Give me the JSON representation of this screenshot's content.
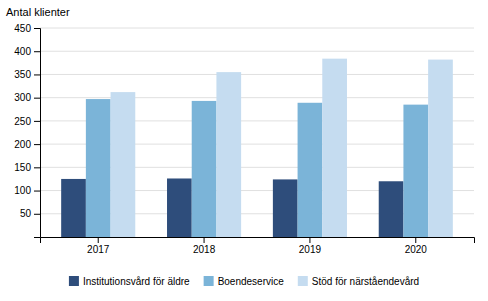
{
  "chart_data": {
    "type": "bar",
    "ylabel": "Antal klienter",
    "categories": [
      "2017",
      "2018",
      "2019",
      "2020"
    ],
    "series": [
      {
        "name": "Institutionsvård för äldre",
        "color": "#2E4D7B",
        "values": [
          125,
          126,
          124,
          120
        ]
      },
      {
        "name": "Boendeservice",
        "color": "#7BB4D8",
        "values": [
          297,
          293,
          289,
          285
        ]
      },
      {
        "name": "Stöd för närståendevård",
        "color": "#C5DCF0",
        "values": [
          312,
          355,
          384,
          382
        ]
      }
    ],
    "ylim": [
      0,
      450
    ],
    "yticks": [
      50,
      100,
      150,
      200,
      250,
      300,
      350,
      400,
      450
    ],
    "grid": true,
    "legend": "bottom"
  }
}
